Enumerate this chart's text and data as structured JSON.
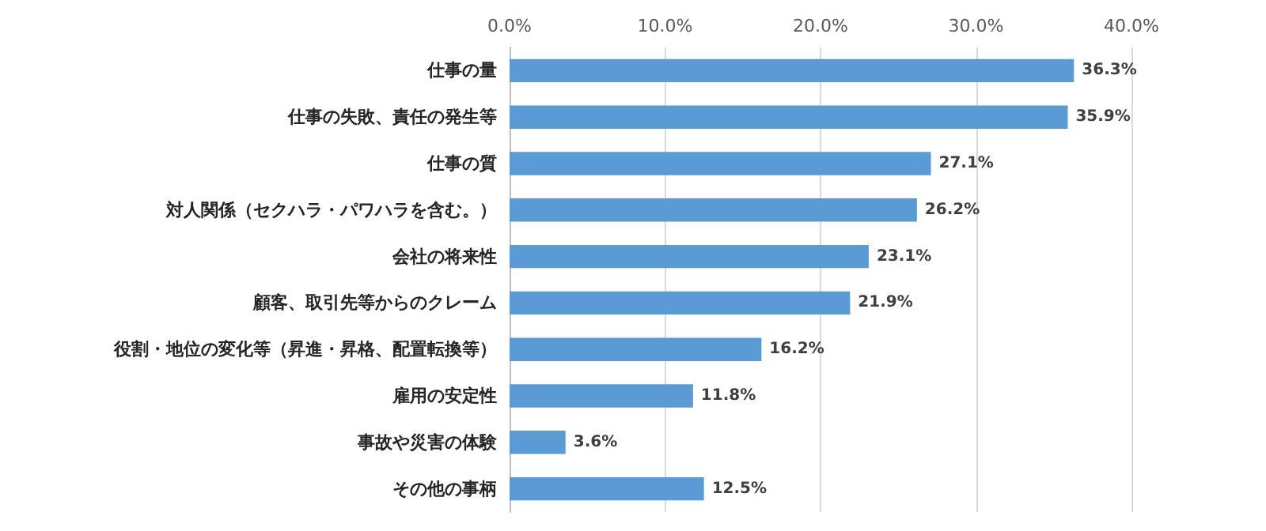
{
  "chart_data": {
    "type": "bar",
    "orientation": "horizontal",
    "categories": [
      "仕事の量",
      "仕事の失敗、責任の発生等",
      "仕事の質",
      "対人関係（セクハラ・パワハラを含む。）",
      "会社の将来性",
      "顧客、取引先等からのクレーム",
      "役割・地位の変化等（昇進・昇格、配置転換等）",
      "雇用の安定性",
      "事故や災害の体験",
      "その他の事柄"
    ],
    "values": [
      36.3,
      35.9,
      27.1,
      26.2,
      23.1,
      21.9,
      16.2,
      11.8,
      3.6,
      12.5
    ],
    "value_labels": [
      "36.3%",
      "35.9%",
      "27.1%",
      "26.2%",
      "23.1%",
      "21.9%",
      "16.2%",
      "11.8%",
      "3.6%",
      "12.5%"
    ],
    "color": "#5b9bd5",
    "xlim": [
      0,
      40
    ],
    "xticks": [
      {
        "value": 0,
        "label": "0.0%"
      },
      {
        "value": 10,
        "label": "10.0%"
      },
      {
        "value": 20,
        "label": "20.0%"
      },
      {
        "value": 30,
        "label": "30.0%"
      },
      {
        "value": 40,
        "label": "40.0%"
      }
    ],
    "grid": "x"
  }
}
